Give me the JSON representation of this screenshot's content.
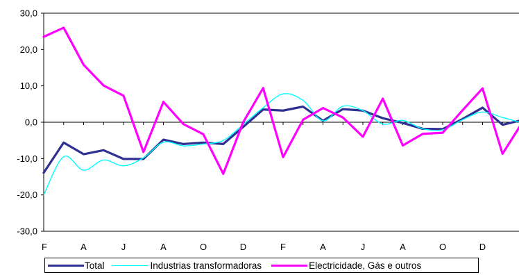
{
  "chart_data": {
    "type": "line",
    "title": "",
    "xlabel": "",
    "ylabel": "",
    "ylim": [
      -30,
      30
    ],
    "ytick_labels": [
      "30,0",
      "20,0",
      "10,0",
      "0,0",
      "-10,0",
      "-20,0",
      "-30,0"
    ],
    "xtick_labels": [
      "F",
      "A",
      "J",
      "A",
      "O",
      "D",
      "F",
      "A",
      "J",
      "A",
      "O",
      "D",
      "F"
    ],
    "grid": false,
    "legend_position": "bottom",
    "series": [
      {
        "name": "Total",
        "color": "#2E3192",
        "values": [
          -13.9,
          -5.6,
          -8.8,
          -7.7,
          -10.1,
          -10.1,
          -4.8,
          -6.0,
          -5.6,
          -6.0,
          -1.3,
          3.5,
          3.2,
          4.3,
          0.4,
          3.6,
          3.2,
          1.1,
          -0.2,
          -1.8,
          -1.9,
          0.9,
          4.0,
          -0.7,
          0.6
        ]
      },
      {
        "name": "Industrias transformadoras",
        "color": "#00FFFF",
        "values": [
          -20.0,
          -9.5,
          -13.2,
          -10.4,
          -12.0,
          -9.8,
          -5.5,
          -6.5,
          -6.0,
          -5.0,
          -0.6,
          4.0,
          7.8,
          6.0,
          0.4,
          4.4,
          3.2,
          -0.5,
          0.5,
          -1.8,
          -2.1,
          0.7,
          2.8,
          1.3,
          -0.2
        ]
      },
      {
        "name": "Electricidade, Gás e outros",
        "color": "#FF00FF",
        "values": [
          23.5,
          26.0,
          15.8,
          10.1,
          7.3,
          -8.2,
          5.6,
          -0.5,
          -3.3,
          -14.2,
          0.0,
          9.4,
          -9.6,
          0.7,
          3.9,
          1.3,
          -4.0,
          6.5,
          -6.4,
          -3.2,
          -2.9,
          3.3,
          9.3,
          -8.7,
          0.0
        ]
      }
    ]
  }
}
